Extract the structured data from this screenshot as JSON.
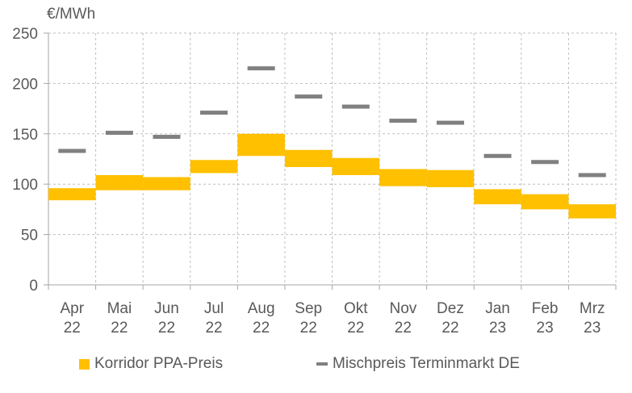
{
  "chart_data": {
    "type": "bar",
    "unit_label": "€/MWh",
    "categories": [
      [
        "Apr",
        "22"
      ],
      [
        "Mai",
        "22"
      ],
      [
        "Jun",
        "22"
      ],
      [
        "Jul",
        "22"
      ],
      [
        "Aug",
        "22"
      ],
      [
        "Sep",
        "22"
      ],
      [
        "Okt",
        "22"
      ],
      [
        "Nov",
        "22"
      ],
      [
        "Dez",
        "22"
      ],
      [
        "Jan",
        "23"
      ],
      [
        "Feb",
        "23"
      ],
      [
        "Mrz",
        "23"
      ]
    ],
    "ylim": [
      0,
      250
    ],
    "yticks": [
      "0",
      "50",
      "100",
      "150",
      "200",
      "250"
    ],
    "grid": true,
    "legend_position": "bottom",
    "series": [
      {
        "name": "Korridor PPA-Preis",
        "kind": "range",
        "color": "#FFC000",
        "low": [
          84,
          94,
          94,
          111,
          128,
          117,
          109,
          98,
          97,
          80,
          75,
          66
        ],
        "high": [
          96,
          109,
          107,
          124,
          150,
          134,
          126,
          115,
          114,
          95,
          90,
          80
        ]
      },
      {
        "name": "Mischpreis Terminmarkt DE",
        "kind": "marker",
        "color": "#808080",
        "values": [
          133,
          151,
          147,
          171,
          215,
          187,
          177,
          163,
          161,
          128,
          122,
          109
        ]
      }
    ]
  }
}
